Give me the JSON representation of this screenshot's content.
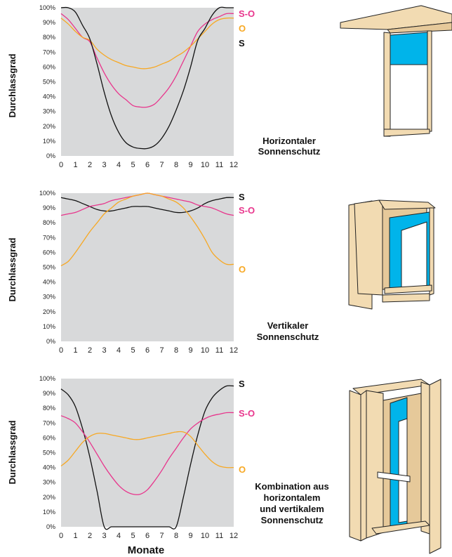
{
  "xlabel": "Monate",
  "colors": {
    "S": "#111111",
    "S-O": "#e8358c",
    "O": "#f7a823",
    "plot_bg": "#d8d9da",
    "wood": "#f2dbb2",
    "glass": "#00b4ea"
  },
  "chart_data": [
    {
      "type": "line",
      "title": "",
      "ylabel": "Durchlassgrad",
      "caption": [
        "Horizontaler",
        "Sonnenschutz"
      ],
      "x": [
        0,
        0.5,
        1,
        1.5,
        2,
        2.5,
        3,
        3.5,
        4,
        4.5,
        5,
        5.5,
        6,
        6.5,
        7,
        7.5,
        8,
        8.5,
        9,
        9.5,
        10,
        10.5,
        11,
        11.5,
        12
      ],
      "xlim": [
        0,
        12
      ],
      "ylim": [
        0,
        100
      ],
      "yticks": [
        "0%",
        "10%",
        "20%",
        "30%",
        "40%",
        "50%",
        "60%",
        "70%",
        "80%",
        "90%",
        "100%"
      ],
      "xticks": [
        "0",
        "1",
        "2",
        "3",
        "4",
        "5",
        "6",
        "7",
        "8",
        "9",
        "10",
        "11",
        "12"
      ],
      "series": [
        {
          "name": "S-O",
          "color_key": "S-O",
          "values": [
            96,
            92,
            86,
            80,
            77,
            66,
            56,
            48,
            42,
            38,
            34,
            33,
            33,
            35,
            40,
            46,
            54,
            64,
            74,
            84,
            89,
            92,
            94,
            96,
            96
          ]
        },
        {
          "name": "O",
          "color_key": "O",
          "values": [
            93,
            89,
            84,
            80,
            78,
            72,
            68,
            65,
            63,
            61,
            60,
            59,
            59,
            60,
            62,
            64,
            67,
            70,
            74,
            79,
            84,
            89,
            92,
            93,
            93
          ]
        },
        {
          "name": "S",
          "color_key": "S",
          "values": [
            100,
            100,
            97,
            88,
            79,
            62,
            43,
            27,
            16,
            9,
            6,
            5,
            5,
            7,
            12,
            20,
            31,
            44,
            60,
            78,
            86,
            95,
            100,
            100,
            100
          ]
        }
      ],
      "legend": [
        {
          "label": "S-O",
          "color_key": "S-O"
        },
        {
          "label": "O",
          "color_key": "O"
        },
        {
          "label": "S",
          "color_key": "S"
        }
      ]
    },
    {
      "type": "line",
      "title": "",
      "ylabel": "Durchlassgrad",
      "caption": [
        "Vertikaler",
        "Sonnenschutz"
      ],
      "x": [
        0,
        0.5,
        1,
        1.5,
        2,
        2.5,
        3,
        3.5,
        4,
        4.5,
        5,
        5.5,
        6,
        6.5,
        7,
        7.5,
        8,
        8.5,
        9,
        9.5,
        10,
        10.5,
        11,
        11.5,
        12
      ],
      "xlim": [
        0,
        12
      ],
      "ylim": [
        0,
        100
      ],
      "yticks": [
        "0%",
        "10%",
        "20%",
        "30%",
        "40%",
        "50%",
        "60%",
        "70%",
        "80%",
        "90%",
        "100%"
      ],
      "xticks": [
        "0",
        "1",
        "2",
        "3",
        "4",
        "5",
        "6",
        "7",
        "8",
        "9",
        "10",
        "11",
        "12"
      ],
      "series": [
        {
          "name": "S",
          "color_key": "S",
          "values": [
            97,
            96,
            95,
            93,
            91,
            89,
            88,
            88,
            89,
            90,
            91,
            91,
            91,
            90,
            89,
            88,
            87,
            87,
            88,
            90,
            93,
            95,
            96,
            97,
            97
          ]
        },
        {
          "name": "S-O",
          "color_key": "S-O",
          "values": [
            85,
            86,
            87,
            89,
            91,
            92,
            93,
            95,
            96,
            97,
            98,
            99,
            100,
            99,
            98,
            97,
            96,
            95,
            94,
            92,
            91,
            90,
            88,
            86,
            85
          ]
        },
        {
          "name": "O",
          "color_key": "O",
          "values": [
            51,
            54,
            60,
            67,
            74,
            80,
            86,
            90,
            94,
            96,
            98,
            99,
            100,
            99,
            98,
            96,
            94,
            90,
            84,
            77,
            69,
            60,
            55,
            52,
            52
          ]
        }
      ],
      "legend": [
        {
          "label": "S",
          "color_key": "S"
        },
        {
          "label": "S-O",
          "color_key": "S-O"
        },
        {
          "label": "O",
          "color_key": "O"
        }
      ]
    },
    {
      "type": "line",
      "title": "",
      "ylabel": "Durchlassgrad",
      "caption": [
        "Kombination aus",
        "horizontalem",
        "und vertikalem",
        "Sonnenschutz"
      ],
      "x": [
        0,
        0.5,
        1,
        1.5,
        2,
        2.5,
        3,
        3.5,
        4,
        4.5,
        5,
        5.5,
        6,
        6.5,
        7,
        7.5,
        8,
        8.5,
        9,
        9.5,
        10,
        10.5,
        11,
        11.5,
        12
      ],
      "xlim": [
        0,
        12
      ],
      "ylim": [
        0,
        100
      ],
      "yticks": [
        "0%",
        "10%",
        "20%",
        "30%",
        "40%",
        "50%",
        "60%",
        "70%",
        "80%",
        "90%",
        "100%"
      ],
      "xticks": [
        "0",
        "1",
        "2",
        "3",
        "4",
        "5",
        "6",
        "7",
        "8",
        "9",
        "10",
        "11",
        "12"
      ],
      "series": [
        {
          "name": "S",
          "color_key": "S",
          "values": [
            93,
            89,
            81,
            66,
            47,
            24,
            0,
            0,
            0,
            0,
            0,
            0,
            0,
            0,
            0,
            0,
            0,
            20,
            42,
            62,
            78,
            87,
            92,
            95,
            95
          ]
        },
        {
          "name": "S-O",
          "color_key": "S-O",
          "values": [
            75,
            73,
            70,
            64,
            57,
            49,
            41,
            34,
            28,
            24,
            22,
            22,
            25,
            31,
            38,
            46,
            53,
            60,
            66,
            70,
            73,
            75,
            76,
            77,
            77
          ]
        },
        {
          "name": "O",
          "color_key": "O",
          "values": [
            41,
            45,
            51,
            57,
            61,
            63,
            63,
            62,
            61,
            60,
            59,
            59,
            60,
            61,
            62,
            63,
            64,
            64,
            61,
            55,
            49,
            44,
            41,
            40,
            40
          ]
        }
      ],
      "legend": [
        {
          "label": "S",
          "color_key": "S"
        },
        {
          "label": "S-O",
          "color_key": "S-O"
        },
        {
          "label": "O",
          "color_key": "O"
        }
      ]
    }
  ]
}
